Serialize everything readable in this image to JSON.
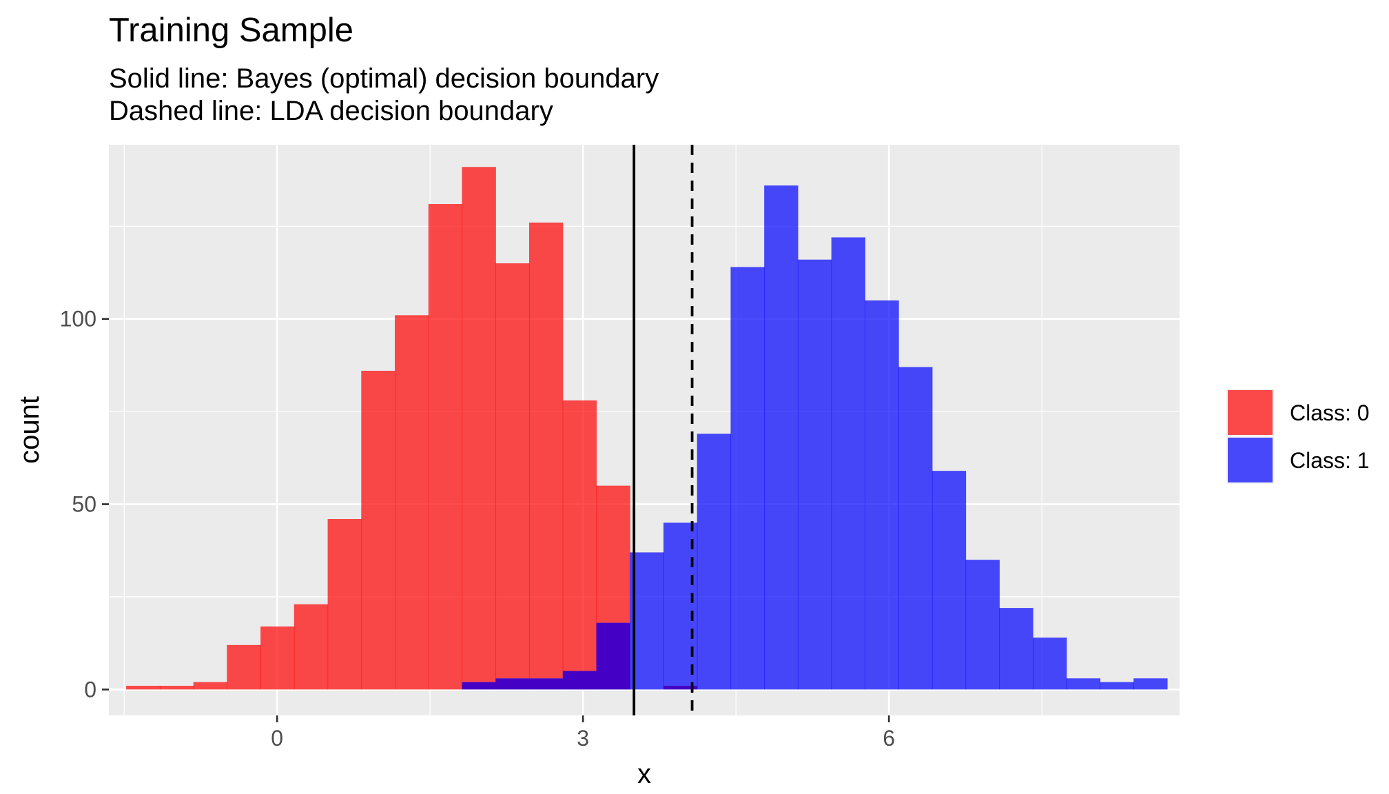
{
  "chart_data": {
    "type": "histogram",
    "title": "Training Sample",
    "subtitle": [
      "Solid line: Bayes (optimal) decision boundary",
      "Dashed line: LDA decision boundary"
    ],
    "xlabel": "x",
    "ylabel": "count",
    "xlim": [
      -1.65,
      8.85
    ],
    "ylim": [
      -7,
      147
    ],
    "x_ticks": [
      0,
      3,
      6
    ],
    "y_ticks": [
      0,
      50,
      100
    ],
    "bin_width": 0.3293,
    "bin_start": -1.48,
    "grid": true,
    "legend_position": "right",
    "series": [
      {
        "name": "Class: 0",
        "color": "#ff0000",
        "counts": [
          1,
          1,
          2,
          12,
          17,
          23,
          46,
          86,
          101,
          131,
          141,
          115,
          126,
          78,
          55,
          0,
          1
        ]
      },
      {
        "name": "Class: 1",
        "color": "#0000ff",
        "bin_start_index": 10,
        "counts": [
          2,
          3,
          3,
          5,
          18,
          37,
          45,
          69,
          114,
          136,
          116,
          122,
          105,
          87,
          59,
          35,
          22,
          14,
          3,
          2,
          3
        ]
      }
    ],
    "overlap_color": "#4400c4",
    "vlines": [
      {
        "x": 3.5,
        "style": "solid",
        "label": "Bayes (optimal) decision boundary"
      },
      {
        "x": 4.07,
        "style": "dashed",
        "label": "LDA decision boundary"
      }
    ]
  }
}
